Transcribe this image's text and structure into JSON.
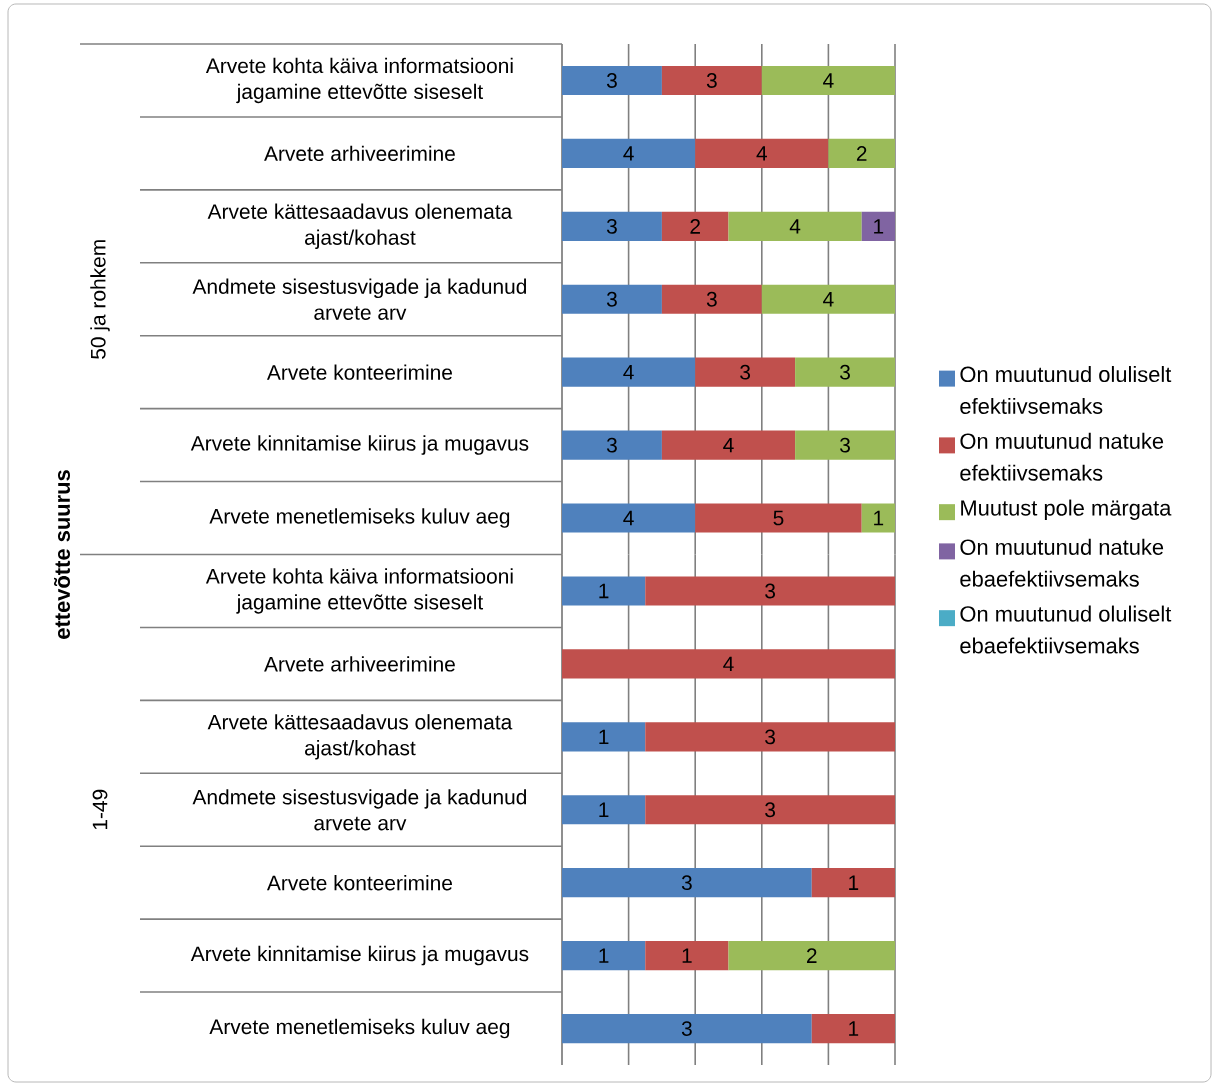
{
  "chart_data": [
    {
      "type": "bar",
      "orientation": "horizontal",
      "stacked": true,
      "ylabel": "50 ja rohkem",
      "grid": "x",
      "legend": "right",
      "data_labels": true,
      "xlim": [
        0,
        10
      ],
      "xticks": [
        {
          "value": 0,
          "label": null
        },
        {
          "value": 2,
          "label": null
        },
        {
          "value": 4,
          "label": null
        },
        {
          "value": 6,
          "label": null
        },
        {
          "value": 8,
          "label": null
        },
        {
          "value": 10,
          "label": null
        }
      ],
      "annotations": [
        "ettevõtte suurus"
      ],
      "categories": [
        "Arvete kohta käiva informatsiooni jagamine ettevõtte siseselt",
        "Arvete arhiveerimine",
        "Arvete kättesaadavus olenemata ajast/kohast",
        "Andmete sisestusvigade ja kadunud arvete arv",
        "Arvete konteerimine",
        "Arvete kinnitamise kiirus ja mugavus",
        "Arvete menetlemiseks kuluv aeg"
      ],
      "series": [
        {
          "name": "On muutunud oluliselt efektiivsemaks",
          "color": "#4f81bd",
          "values": [
            3,
            4,
            3,
            3,
            4,
            3,
            4
          ]
        },
        {
          "name": "On muutunud natuke efektiivsemaks",
          "color": "#c0504d",
          "values": [
            3,
            4,
            2,
            3,
            3,
            4,
            5
          ]
        },
        {
          "name": "Muutust pole märgata",
          "color": "#9bbb59",
          "values": [
            4,
            2,
            4,
            4,
            3,
            3,
            1
          ]
        },
        {
          "name": "On muutunud natuke ebaefektiivsemaks",
          "color": "#8064a2",
          "values": [
            null,
            null,
            1,
            null,
            null,
            null,
            null
          ]
        },
        {
          "name": "On muutunud oluliselt ebaefektiivsemaks",
          "color": "#4bacc6",
          "values": [
            null,
            null,
            null,
            null,
            null,
            null,
            null
          ]
        }
      ]
    },
    {
      "type": "bar",
      "orientation": "horizontal",
      "stacked": true,
      "ylabel": "1-49",
      "grid": "x",
      "data_labels": true,
      "xlim": [
        0,
        4
      ],
      "xticks": [
        {
          "value": 0,
          "label": null
        },
        {
          "value": 0.8,
          "label": null
        },
        {
          "value": 1.6,
          "label": null
        },
        {
          "value": 2.4,
          "label": null
        },
        {
          "value": 3.2,
          "label": null
        },
        {
          "value": 4,
          "label": null
        }
      ],
      "categories": [
        "Arvete kohta käiva informatsiooni jagamine ettevõtte siseselt",
        "Arvete arhiveerimine",
        "Arvete kättesaadavus olenemata ajast/kohast",
        "Andmete sisestusvigade ja kadunud arvete arv",
        "Arvete konteerimine",
        "Arvete kinnitamise kiirus ja mugavus",
        "Arvete menetlemiseks kuluv aeg"
      ],
      "series": [
        {
          "color": "#4f81bd",
          "values": [
            1,
            null,
            1,
            1,
            3,
            1,
            3
          ]
        },
        {
          "color": "#c0504d",
          "values": [
            3,
            4,
            3,
            3,
            1,
            1,
            1
          ]
        },
        {
          "color": "#9bbb59",
          "values": [
            null,
            null,
            null,
            null,
            null,
            2,
            null
          ]
        }
      ]
    }
  ]
}
